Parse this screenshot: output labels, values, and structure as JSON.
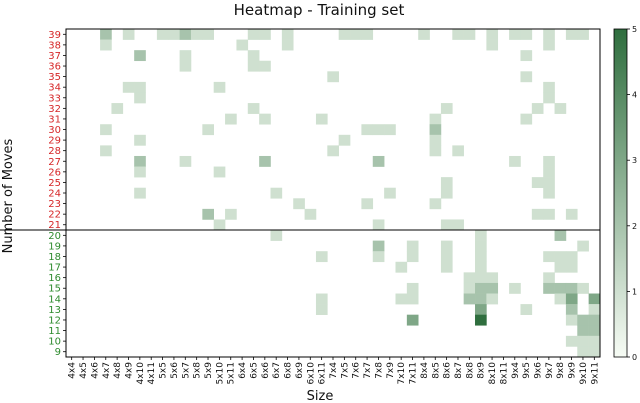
{
  "chart_data": {
    "type": "heatmap",
    "title": "Heatmap - Training set",
    "xlabel": "Size",
    "ylabel": "Number of Moves",
    "x_categories": [
      "4x4",
      "4x5",
      "4x6",
      "4x7",
      "4x8",
      "4x9",
      "4x10",
      "4x11",
      "5x5",
      "5x6",
      "5x7",
      "5x8",
      "5x9",
      "5x10",
      "5x11",
      "6x4",
      "6x5",
      "6x6",
      "6x7",
      "6x8",
      "6x9",
      "6x10",
      "6x11",
      "7x4",
      "7x5",
      "7x6",
      "7x7",
      "7x8",
      "7x9",
      "7x10",
      "7x11",
      "8x4",
      "8x5",
      "8x6",
      "8x7",
      "8x8",
      "8x9",
      "8x10",
      "8x11",
      "9x4",
      "9x5",
      "9x6",
      "9x7",
      "9x8",
      "9x9",
      "9x10",
      "9x11"
    ],
    "y_categories": [
      9,
      10,
      11,
      12,
      13,
      14,
      15,
      16,
      17,
      18,
      19,
      20,
      21,
      22,
      23,
      24,
      25,
      26,
      27,
      28,
      29,
      30,
      31,
      32,
      33,
      34,
      35,
      36,
      37,
      38,
      39
    ],
    "y_label_colors": {
      "low": "#2e8b2e",
      "high": "#d62728",
      "threshold_move": 20
    },
    "colormap": {
      "low": "#f7fcf5",
      "high": "#2f6e3e"
    },
    "colorbar": {
      "min": 0,
      "max": 5,
      "ticks": [
        0,
        1,
        2,
        3,
        4,
        5
      ]
    },
    "divider_between_moves": [
      20,
      21
    ],
    "cells": [
      {
        "x": "4x7",
        "y": 39,
        "v": 2
      },
      {
        "x": "4x9",
        "y": 39,
        "v": 1
      },
      {
        "x": "5x5",
        "y": 39,
        "v": 1
      },
      {
        "x": "5x6",
        "y": 39,
        "v": 1
      },
      {
        "x": "5x7",
        "y": 39,
        "v": 2
      },
      {
        "x": "5x8",
        "y": 39,
        "v": 1
      },
      {
        "x": "5x9",
        "y": 39,
        "v": 1
      },
      {
        "x": "6x5",
        "y": 39,
        "v": 1
      },
      {
        "x": "6x6",
        "y": 39,
        "v": 1
      },
      {
        "x": "6x8",
        "y": 39,
        "v": 1
      },
      {
        "x": "7x5",
        "y": 39,
        "v": 1
      },
      {
        "x": "7x6",
        "y": 39,
        "v": 1
      },
      {
        "x": "7x7",
        "y": 39,
        "v": 1
      },
      {
        "x": "8x4",
        "y": 39,
        "v": 1
      },
      {
        "x": "8x7",
        "y": 39,
        "v": 1
      },
      {
        "x": "8x8",
        "y": 39,
        "v": 1
      },
      {
        "x": "8x10",
        "y": 39,
        "v": 1
      },
      {
        "x": "9x4",
        "y": 39,
        "v": 1
      },
      {
        "x": "9x5",
        "y": 39,
        "v": 1
      },
      {
        "x": "9x7",
        "y": 39,
        "v": 1
      },
      {
        "x": "9x9",
        "y": 39,
        "v": 1
      },
      {
        "x": "9x10",
        "y": 39,
        "v": 1
      },
      {
        "x": "4x7",
        "y": 38,
        "v": 1
      },
      {
        "x": "6x4",
        "y": 38,
        "v": 1
      },
      {
        "x": "6x8",
        "y": 38,
        "v": 1
      },
      {
        "x": "8x10",
        "y": 38,
        "v": 1
      },
      {
        "x": "9x7",
        "y": 38,
        "v": 1
      },
      {
        "x": "4x10",
        "y": 37,
        "v": 2
      },
      {
        "x": "5x7",
        "y": 37,
        "v": 1
      },
      {
        "x": "6x5",
        "y": 37,
        "v": 1
      },
      {
        "x": "9x5",
        "y": 37,
        "v": 1
      },
      {
        "x": "5x7",
        "y": 36,
        "v": 1
      },
      {
        "x": "6x5",
        "y": 36,
        "v": 1
      },
      {
        "x": "6x6",
        "y": 36,
        "v": 1
      },
      {
        "x": "7x4",
        "y": 35,
        "v": 1
      },
      {
        "x": "9x5",
        "y": 35,
        "v": 1
      },
      {
        "x": "4x9",
        "y": 34,
        "v": 1
      },
      {
        "x": "4x10",
        "y": 34,
        "v": 1
      },
      {
        "x": "5x10",
        "y": 34,
        "v": 1
      },
      {
        "x": "9x7",
        "y": 34,
        "v": 1
      },
      {
        "x": "4x10",
        "y": 33,
        "v": 1
      },
      {
        "x": "9x7",
        "y": 33,
        "v": 1
      },
      {
        "x": "4x8",
        "y": 32,
        "v": 1
      },
      {
        "x": "6x5",
        "y": 32,
        "v": 1
      },
      {
        "x": "8x6",
        "y": 32,
        "v": 1
      },
      {
        "x": "9x6",
        "y": 32,
        "v": 1
      },
      {
        "x": "9x8",
        "y": 32,
        "v": 1
      },
      {
        "x": "5x11",
        "y": 31,
        "v": 1
      },
      {
        "x": "6x6",
        "y": 31,
        "v": 1
      },
      {
        "x": "6x11",
        "y": 31,
        "v": 1
      },
      {
        "x": "8x5",
        "y": 31,
        "v": 1
      },
      {
        "x": "9x5",
        "y": 31,
        "v": 1
      },
      {
        "x": "4x7",
        "y": 30,
        "v": 1
      },
      {
        "x": "5x9",
        "y": 30,
        "v": 1
      },
      {
        "x": "7x7",
        "y": 30,
        "v": 1
      },
      {
        "x": "7x8",
        "y": 30,
        "v": 1
      },
      {
        "x": "7x9",
        "y": 30,
        "v": 1
      },
      {
        "x": "8x5",
        "y": 30,
        "v": 2
      },
      {
        "x": "4x10",
        "y": 29,
        "v": 1
      },
      {
        "x": "7x5",
        "y": 29,
        "v": 1
      },
      {
        "x": "8x5",
        "y": 29,
        "v": 1
      },
      {
        "x": "4x7",
        "y": 28,
        "v": 1
      },
      {
        "x": "7x4",
        "y": 28,
        "v": 1
      },
      {
        "x": "8x5",
        "y": 28,
        "v": 1
      },
      {
        "x": "8x7",
        "y": 28,
        "v": 1
      },
      {
        "x": "4x10",
        "y": 27,
        "v": 2
      },
      {
        "x": "5x7",
        "y": 27,
        "v": 1
      },
      {
        "x": "6x6",
        "y": 27,
        "v": 2
      },
      {
        "x": "7x8",
        "y": 27,
        "v": 2
      },
      {
        "x": "9x4",
        "y": 27,
        "v": 1
      },
      {
        "x": "9x7",
        "y": 27,
        "v": 1
      },
      {
        "x": "4x10",
        "y": 26,
        "v": 1
      },
      {
        "x": "5x10",
        "y": 26,
        "v": 1
      },
      {
        "x": "9x7",
        "y": 26,
        "v": 1
      },
      {
        "x": "8x6",
        "y": 25,
        "v": 1
      },
      {
        "x": "9x6",
        "y": 25,
        "v": 1
      },
      {
        "x": "9x7",
        "y": 25,
        "v": 1
      },
      {
        "x": "4x10",
        "y": 24,
        "v": 1
      },
      {
        "x": "6x7",
        "y": 24,
        "v": 1
      },
      {
        "x": "7x9",
        "y": 24,
        "v": 1
      },
      {
        "x": "8x6",
        "y": 24,
        "v": 1
      },
      {
        "x": "9x7",
        "y": 24,
        "v": 1
      },
      {
        "x": "6x9",
        "y": 23,
        "v": 1
      },
      {
        "x": "7x7",
        "y": 23,
        "v": 1
      },
      {
        "x": "8x5",
        "y": 23,
        "v": 1
      },
      {
        "x": "5x9",
        "y": 22,
        "v": 2
      },
      {
        "x": "5x11",
        "y": 22,
        "v": 1
      },
      {
        "x": "6x10",
        "y": 22,
        "v": 1
      },
      {
        "x": "9x6",
        "y": 22,
        "v": 1
      },
      {
        "x": "9x7",
        "y": 22,
        "v": 1
      },
      {
        "x": "9x9",
        "y": 22,
        "v": 1
      },
      {
        "x": "5x10",
        "y": 21,
        "v": 1
      },
      {
        "x": "7x8",
        "y": 21,
        "v": 1
      },
      {
        "x": "8x6",
        "y": 21,
        "v": 1
      },
      {
        "x": "8x7",
        "y": 21,
        "v": 1
      },
      {
        "x": "6x7",
        "y": 20,
        "v": 1
      },
      {
        "x": "8x9",
        "y": 20,
        "v": 1
      },
      {
        "x": "9x8",
        "y": 20,
        "v": 2
      },
      {
        "x": "7x8",
        "y": 19,
        "v": 2
      },
      {
        "x": "7x11",
        "y": 19,
        "v": 1
      },
      {
        "x": "8x6",
        "y": 19,
        "v": 1
      },
      {
        "x": "8x9",
        "y": 19,
        "v": 1
      },
      {
        "x": "9x10",
        "y": 19,
        "v": 1
      },
      {
        "x": "6x11",
        "y": 18,
        "v": 1
      },
      {
        "x": "7x8",
        "y": 18,
        "v": 1
      },
      {
        "x": "7x11",
        "y": 18,
        "v": 1
      },
      {
        "x": "8x6",
        "y": 18,
        "v": 1
      },
      {
        "x": "8x9",
        "y": 18,
        "v": 1
      },
      {
        "x": "9x7",
        "y": 18,
        "v": 1
      },
      {
        "x": "9x8",
        "y": 18,
        "v": 1
      },
      {
        "x": "9x9",
        "y": 18,
        "v": 1
      },
      {
        "x": "7x10",
        "y": 17,
        "v": 1
      },
      {
        "x": "8x6",
        "y": 17,
        "v": 1
      },
      {
        "x": "8x9",
        "y": 17,
        "v": 1
      },
      {
        "x": "9x8",
        "y": 17,
        "v": 1
      },
      {
        "x": "9x9",
        "y": 17,
        "v": 1
      },
      {
        "x": "8x8",
        "y": 16,
        "v": 1
      },
      {
        "x": "8x9",
        "y": 16,
        "v": 1
      },
      {
        "x": "8x10",
        "y": 16,
        "v": 1
      },
      {
        "x": "9x7",
        "y": 16,
        "v": 1
      },
      {
        "x": "7x11",
        "y": 15,
        "v": 1
      },
      {
        "x": "8x8",
        "y": 15,
        "v": 1
      },
      {
        "x": "8x9",
        "y": 15,
        "v": 2
      },
      {
        "x": "8x10",
        "y": 15,
        "v": 2
      },
      {
        "x": "9x4",
        "y": 15,
        "v": 1
      },
      {
        "x": "9x7",
        "y": 15,
        "v": 2
      },
      {
        "x": "9x8",
        "y": 15,
        "v": 2
      },
      {
        "x": "9x9",
        "y": 15,
        "v": 2
      },
      {
        "x": "9x10",
        "y": 15,
        "v": 1
      },
      {
        "x": "6x11",
        "y": 14,
        "v": 1
      },
      {
        "x": "7x10",
        "y": 14,
        "v": 1
      },
      {
        "x": "7x11",
        "y": 14,
        "v": 1
      },
      {
        "x": "8x8",
        "y": 14,
        "v": 2
      },
      {
        "x": "8x9",
        "y": 14,
        "v": 2
      },
      {
        "x": "8x10",
        "y": 14,
        "v": 1
      },
      {
        "x": "9x8",
        "y": 14,
        "v": 1
      },
      {
        "x": "9x9",
        "y": 14,
        "v": 3
      },
      {
        "x": "9x11",
        "y": 14,
        "v": 3
      },
      {
        "x": "6x11",
        "y": 13,
        "v": 1
      },
      {
        "x": "8x9",
        "y": 13,
        "v": 3
      },
      {
        "x": "9x5",
        "y": 13,
        "v": 1
      },
      {
        "x": "9x9",
        "y": 13,
        "v": 2
      },
      {
        "x": "9x11",
        "y": 13,
        "v": 1
      },
      {
        "x": "7x11",
        "y": 12,
        "v": 3
      },
      {
        "x": "8x9",
        "y": 12,
        "v": 5
      },
      {
        "x": "9x9",
        "y": 12,
        "v": 1
      },
      {
        "x": "9x10",
        "y": 12,
        "v": 2
      },
      {
        "x": "9x11",
        "y": 12,
        "v": 2
      },
      {
        "x": "9x10",
        "y": 11,
        "v": 2
      },
      {
        "x": "9x11",
        "y": 11,
        "v": 2
      },
      {
        "x": "9x9",
        "y": 10,
        "v": 1
      },
      {
        "x": "9x10",
        "y": 10,
        "v": 1
      },
      {
        "x": "9x11",
        "y": 10,
        "v": 1
      },
      {
        "x": "9x10",
        "y": 9,
        "v": 1
      },
      {
        "x": "9x11",
        "y": 9,
        "v": 1
      }
    ]
  }
}
